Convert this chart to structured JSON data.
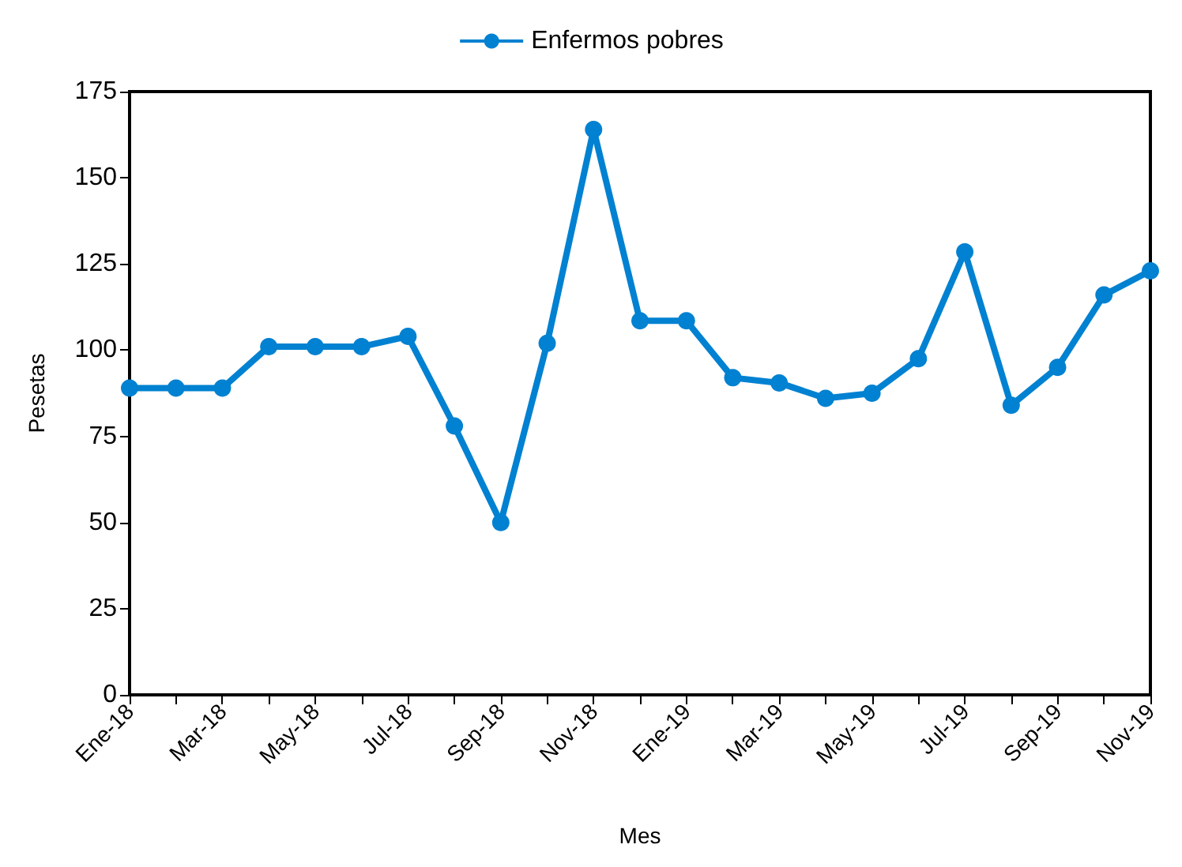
{
  "chart_data": {
    "type": "line",
    "xlabel": "Mes",
    "ylabel": "Pesetas",
    "categories": [
      "Ene-18",
      null,
      "Mar-18",
      null,
      "May-18",
      null,
      "Jul-18",
      null,
      "Sep-18",
      null,
      "Nov-18",
      null,
      "Ene-19",
      null,
      "Mar-19",
      null,
      "May-19",
      null,
      "Jul-19",
      null,
      "Sep-19",
      null,
      "Nov-19"
    ],
    "series": [
      {
        "name": "Enfermos pobres",
        "color": "#0081d1",
        "values": [
          89,
          89,
          89,
          101,
          101,
          101,
          104,
          78,
          50,
          102,
          164,
          108.5,
          108.5,
          92,
          90.5,
          86,
          87.5,
          97.5,
          128.5,
          84,
          95,
          116,
          123
        ]
      }
    ],
    "ylim": [
      0,
      175
    ],
    "yticks": [
      0,
      25,
      50,
      75,
      100,
      125,
      150,
      175
    ],
    "grid": false,
    "legend": "top",
    "marker": "circle",
    "line_style": "solid"
  }
}
